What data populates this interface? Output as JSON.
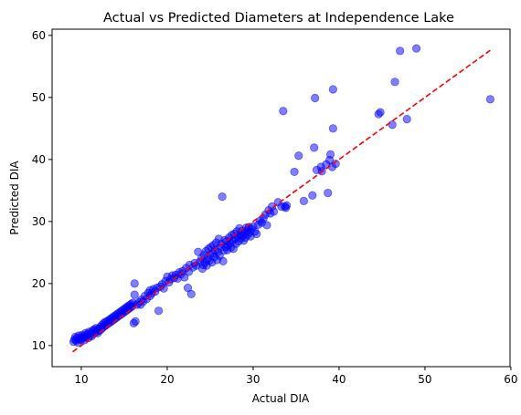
{
  "chart_data": {
    "type": "scatter",
    "title": "Actual vs Predicted Diameters at Independence Lake",
    "xlabel": "Actual DIA",
    "ylabel": "Predicted DIA",
    "xlim": [
      6.6,
      59.9
    ],
    "ylim": [
      6.6,
      61.0
    ],
    "xticks": [
      10,
      20,
      30,
      40,
      50,
      60
    ],
    "yticks": [
      10,
      20,
      30,
      40,
      50,
      60
    ],
    "grid": false,
    "legend": "none",
    "colors": {
      "points": "#0000ff",
      "reference_line": "#ff0000"
    },
    "reference_line": {
      "style": "dashed",
      "x": [
        9,
        57.6
      ],
      "y": [
        9,
        57.6
      ]
    },
    "points": [
      [
        9.1,
        10.6
      ],
      [
        9.2,
        11.0
      ],
      [
        9.3,
        11.4
      ],
      [
        9.4,
        10.8
      ],
      [
        9.5,
        11.2
      ],
      [
        9.6,
        10.5
      ],
      [
        9.7,
        11.6
      ],
      [
        9.8,
        11.0
      ],
      [
        9.9,
        11.3
      ],
      [
        10.0,
        10.9
      ],
      [
        10.1,
        11.7
      ],
      [
        10.2,
        11.2
      ],
      [
        10.3,
        11.5
      ],
      [
        10.4,
        10.9
      ],
      [
        10.5,
        12.0
      ],
      [
        10.6,
        11.4
      ],
      [
        10.7,
        11.8
      ],
      [
        10.8,
        11.2
      ],
      [
        10.9,
        12.2
      ],
      [
        11.0,
        11.6
      ],
      [
        11.1,
        12.0
      ],
      [
        11.2,
        11.5
      ],
      [
        11.3,
        12.4
      ],
      [
        11.4,
        11.9
      ],
      [
        11.5,
        12.6
      ],
      [
        11.6,
        12.1
      ],
      [
        11.7,
        12.8
      ],
      [
        11.8,
        12.3
      ],
      [
        11.9,
        12.0
      ],
      [
        12.0,
        12.7
      ],
      [
        12.1,
        12.4
      ],
      [
        12.2,
        13.0
      ],
      [
        12.3,
        12.6
      ],
      [
        12.4,
        13.3
      ],
      [
        12.5,
        12.9
      ],
      [
        12.6,
        13.6
      ],
      [
        12.7,
        13.1
      ],
      [
        12.8,
        13.8
      ],
      [
        12.9,
        13.3
      ],
      [
        13.0,
        13.9
      ],
      [
        13.1,
        13.5
      ],
      [
        13.2,
        14.1
      ],
      [
        13.3,
        13.7
      ],
      [
        13.4,
        14.3
      ],
      [
        13.5,
        13.9
      ],
      [
        13.6,
        14.5
      ],
      [
        13.7,
        14.1
      ],
      [
        13.8,
        14.7
      ],
      [
        13.9,
        14.3
      ],
      [
        14.0,
        14.9
      ],
      [
        14.1,
        14.5
      ],
      [
        14.2,
        15.1
      ],
      [
        14.3,
        14.7
      ],
      [
        14.4,
        15.3
      ],
      [
        14.5,
        14.9
      ],
      [
        14.6,
        15.5
      ],
      [
        14.7,
        15.1
      ],
      [
        14.8,
        15.7
      ],
      [
        14.9,
        15.3
      ],
      [
        15.0,
        15.9
      ],
      [
        15.1,
        15.5
      ],
      [
        15.2,
        16.1
      ],
      [
        15.3,
        15.7
      ],
      [
        15.4,
        16.3
      ],
      [
        15.5,
        15.9
      ],
      [
        15.6,
        16.5
      ],
      [
        15.7,
        16.1
      ],
      [
        15.8,
        16.7
      ],
      [
        15.9,
        16.3
      ],
      [
        16.0,
        16.9
      ],
      [
        16.1,
        13.6
      ],
      [
        16.3,
        13.9
      ],
      [
        16.2,
        20.0
      ],
      [
        16.2,
        18.2
      ],
      [
        16.5,
        16.6
      ],
      [
        16.7,
        17.0
      ],
      [
        16.9,
        16.6
      ],
      [
        17.0,
        17.4
      ],
      [
        17.2,
        17.1
      ],
      [
        17.4,
        18.0
      ],
      [
        17.6,
        17.5
      ],
      [
        17.8,
        18.5
      ],
      [
        18.0,
        18.0
      ],
      [
        18.0,
        18.9
      ],
      [
        18.2,
        18.4
      ],
      [
        18.4,
        19.1
      ],
      [
        18.6,
        18.7
      ],
      [
        18.8,
        19.3
      ],
      [
        19.0,
        15.6
      ],
      [
        19.2,
        19.5
      ],
      [
        19.4,
        19.9
      ],
      [
        19.6,
        19.2
      ],
      [
        19.8,
        20.4
      ],
      [
        20.0,
        21.1
      ],
      [
        20.2,
        20.2
      ],
      [
        20.4,
        20.7
      ],
      [
        20.6,
        21.3
      ],
      [
        20.8,
        20.9
      ],
      [
        21.0,
        21.4
      ],
      [
        21.2,
        20.8
      ],
      [
        21.4,
        21.8
      ],
      [
        21.6,
        21.5
      ],
      [
        21.8,
        22.0
      ],
      [
        22.0,
        21.0
      ],
      [
        22.2,
        22.5
      ],
      [
        22.4,
        19.3
      ],
      [
        22.5,
        21.9
      ],
      [
        22.6,
        23.0
      ],
      [
        22.8,
        18.3
      ],
      [
        23.0,
        22.6
      ],
      [
        23.2,
        23.3
      ],
      [
        23.4,
        22.9
      ],
      [
        23.6,
        25.1
      ],
      [
        23.8,
        23.5
      ],
      [
        24.0,
        24.1
      ],
      [
        24.1,
        22.4
      ],
      [
        24.2,
        23.0
      ],
      [
        24.3,
        24.6
      ],
      [
        24.4,
        23.4
      ],
      [
        24.5,
        25.2
      ],
      [
        24.6,
        22.9
      ],
      [
        24.7,
        24.0
      ],
      [
        24.8,
        25.6
      ],
      [
        24.9,
        23.7
      ],
      [
        25.0,
        24.6
      ],
      [
        25.1,
        25.9
      ],
      [
        25.2,
        23.4
      ],
      [
        25.3,
        24.9
      ],
      [
        25.4,
        26.2
      ],
      [
        25.5,
        24.3
      ],
      [
        25.6,
        25.4
      ],
      [
        25.7,
        26.6
      ],
      [
        25.8,
        23.8
      ],
      [
        25.9,
        25.1
      ],
      [
        26.0,
        27.2
      ],
      [
        26.1,
        24.5
      ],
      [
        26.2,
        25.8
      ],
      [
        26.3,
        26.4
      ],
      [
        26.4,
        34.0
      ],
      [
        26.5,
        23.6
      ],
      [
        26.6,
        25.3
      ],
      [
        26.7,
        27.0
      ],
      [
        26.8,
        25.9
      ],
      [
        26.9,
        26.8
      ],
      [
        27.0,
        25.4
      ],
      [
        27.1,
        26.2
      ],
      [
        27.2,
        27.4
      ],
      [
        27.3,
        26.6
      ],
      [
        27.4,
        25.8
      ],
      [
        27.5,
        27.8
      ],
      [
        27.6,
        26.9
      ],
      [
        27.7,
        25.6
      ],
      [
        27.8,
        28.0
      ],
      [
        27.9,
        27.2
      ],
      [
        28.0,
        26.4
      ],
      [
        28.1,
        28.4
      ],
      [
        28.2,
        27.6
      ],
      [
        28.3,
        26.8
      ],
      [
        28.4,
        28.9
      ],
      [
        28.5,
        27.9
      ],
      [
        28.6,
        27.3
      ],
      [
        28.7,
        28.5
      ],
      [
        28.8,
        27.7
      ],
      [
        28.9,
        26.9
      ],
      [
        29.0,
        28.2
      ],
      [
        29.1,
        27.4
      ],
      [
        29.2,
        29.0
      ],
      [
        29.3,
        28.6
      ],
      [
        29.4,
        27.9
      ],
      [
        29.5,
        29.1
      ],
      [
        29.6,
        28.3
      ],
      [
        29.7,
        27.6
      ],
      [
        29.8,
        28.8
      ],
      [
        30.0,
        29.2
      ],
      [
        30.2,
        28.4
      ],
      [
        30.4,
        28.0
      ],
      [
        30.6,
        29.5
      ],
      [
        30.8,
        30.1
      ],
      [
        31.0,
        29.8
      ],
      [
        31.2,
        30.5
      ],
      [
        31.4,
        31.1
      ],
      [
        31.6,
        29.4
      ],
      [
        31.8,
        31.8
      ],
      [
        32.0,
        31.3
      ],
      [
        32.2,
        32.4
      ],
      [
        32.4,
        31.6
      ],
      [
        32.9,
        33.1
      ],
      [
        33.3,
        32.4
      ],
      [
        33.7,
        32.4
      ],
      [
        33.8,
        32.2
      ],
      [
        33.9,
        32.6
      ],
      [
        33.5,
        47.8
      ],
      [
        34.8,
        38.0
      ],
      [
        35.3,
        40.6
      ],
      [
        35.9,
        33.3
      ],
      [
        36.9,
        34.2
      ],
      [
        37.1,
        41.9
      ],
      [
        37.2,
        49.9
      ],
      [
        37.4,
        38.3
      ],
      [
        37.9,
        38.8
      ],
      [
        38.0,
        38.1
      ],
      [
        38.5,
        39.2
      ],
      [
        38.7,
        34.6
      ],
      [
        38.9,
        39.9
      ],
      [
        39.0,
        40.8
      ],
      [
        39.2,
        38.8
      ],
      [
        39.3,
        45.0
      ],
      [
        39.3,
        51.3
      ],
      [
        39.6,
        39.3
      ],
      [
        44.6,
        47.3
      ],
      [
        44.8,
        47.6
      ],
      [
        46.2,
        45.6
      ],
      [
        46.5,
        52.5
      ],
      [
        47.1,
        57.5
      ],
      [
        47.9,
        46.5
      ],
      [
        49.0,
        57.9
      ],
      [
        57.6,
        49.7
      ]
    ]
  }
}
